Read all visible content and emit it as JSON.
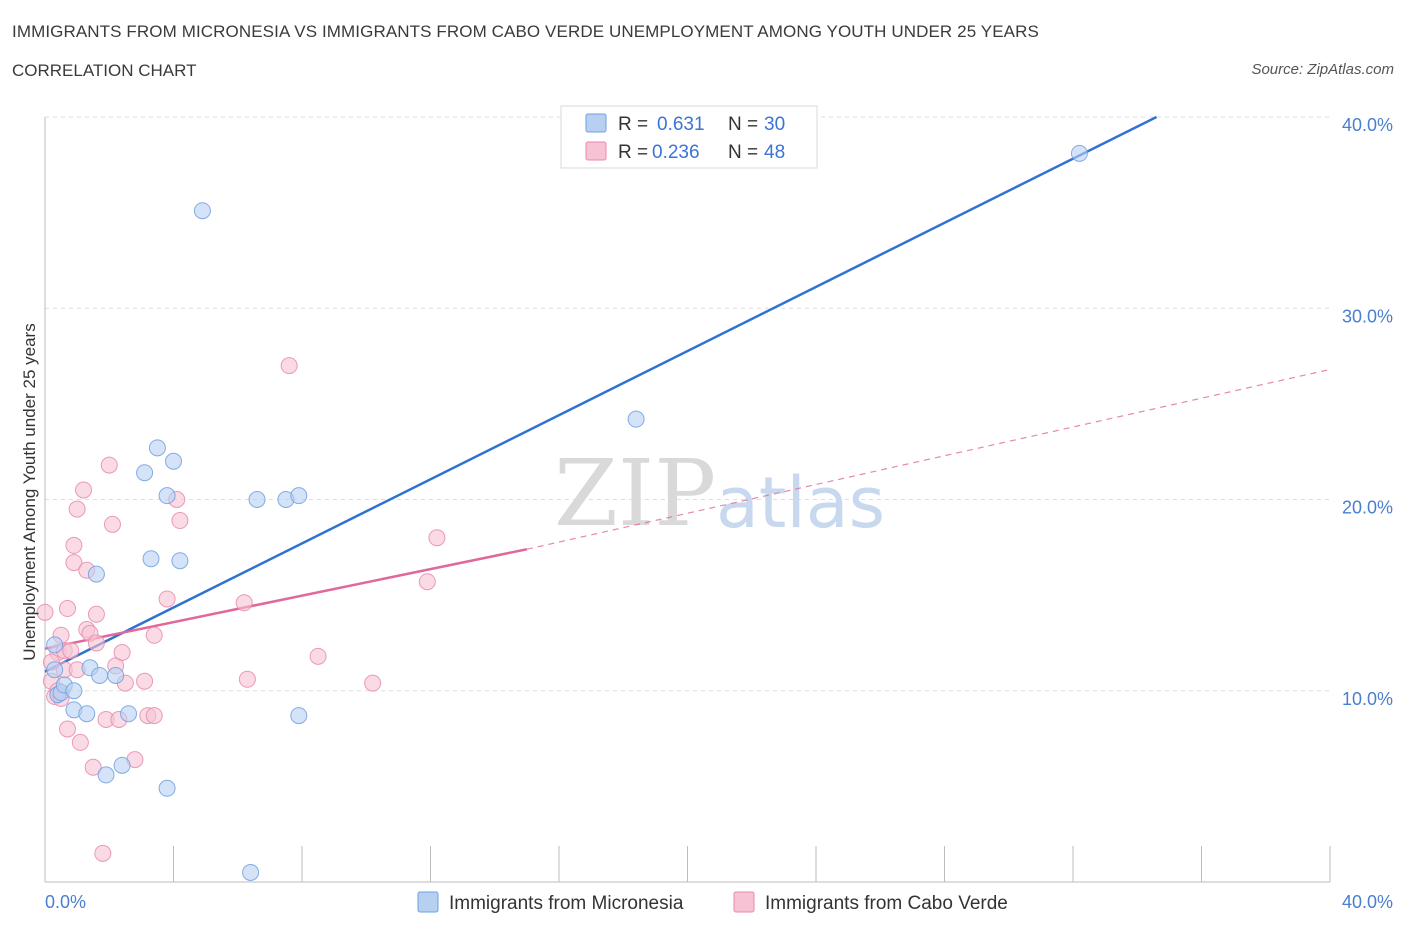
{
  "header": {
    "title": "IMMIGRANTS FROM MICRONESIA VS IMMIGRANTS FROM CABO VERDE UNEMPLOYMENT AMONG YOUTH UNDER 25 YEARS",
    "subtitle": "CORRELATION CHART",
    "source": "Source: ZipAtlas.com"
  },
  "watermark": {
    "zip": "ZIP",
    "atlas": "atlas"
  },
  "colors": {
    "micronesia": "#6ea0e0",
    "micronesia_fill": "#b7d0f2",
    "micronesia_line": "#2f72d0",
    "caboverde": "#e88aac",
    "caboverde_fill": "#f7c3d4",
    "caboverde_line": "#e0699a",
    "grid": "#dddddd"
  },
  "chart_data": {
    "type": "scatter",
    "title": "IMMIGRANTS FROM MICRONESIA VS IMMIGRANTS FROM CABO VERDE UNEMPLOYMENT AMONG YOUTH UNDER 25 YEARS",
    "xlabel": "",
    "ylabel": "Unemployment Among Youth under 25 years",
    "xlim": [
      0,
      40
    ],
    "ylim": [
      0,
      40
    ],
    "x_ticks": [
      "0.0%",
      "40.0%"
    ],
    "y_ticks": [
      {
        "value": 10,
        "label": "10.0%"
      },
      {
        "value": 20,
        "label": "20.0%"
      },
      {
        "value": 30,
        "label": "30.0%"
      },
      {
        "value": 40,
        "label": "40.0%"
      }
    ],
    "legend": {
      "position": "top-center",
      "entries": [
        {
          "r_label": "R =",
          "r": "0.631",
          "n_label": "N =",
          "n": "30"
        },
        {
          "r_label": "R =",
          "r": "0.236",
          "n_label": "N =",
          "n": "48"
        }
      ]
    },
    "series": [
      {
        "name": "Immigrants from Micronesia",
        "points": [
          [
            0.3,
            12.4
          ],
          [
            0.3,
            11.1
          ],
          [
            0.4,
            9.8
          ],
          [
            0.5,
            9.9
          ],
          [
            0.6,
            10.3
          ],
          [
            0.9,
            9.0
          ],
          [
            0.9,
            10.0
          ],
          [
            1.3,
            8.8
          ],
          [
            1.4,
            11.2
          ],
          [
            1.6,
            16.1
          ],
          [
            1.7,
            10.8
          ],
          [
            1.9,
            5.6
          ],
          [
            2.2,
            10.8
          ],
          [
            2.4,
            6.1
          ],
          [
            2.6,
            8.8
          ],
          [
            3.1,
            21.4
          ],
          [
            3.3,
            16.9
          ],
          [
            3.5,
            22.7
          ],
          [
            3.8,
            4.9
          ],
          [
            3.8,
            20.2
          ],
          [
            4.0,
            22.0
          ],
          [
            4.2,
            16.8
          ],
          [
            4.9,
            35.1
          ],
          [
            6.4,
            0.5
          ],
          [
            6.6,
            20.0
          ],
          [
            7.5,
            20.0
          ],
          [
            7.9,
            20.2
          ],
          [
            7.9,
            8.7
          ],
          [
            18.4,
            24.2
          ],
          [
            32.2,
            38.1
          ]
        ],
        "trend": {
          "x0": 0,
          "y0": 11.0,
          "x1": 34.6,
          "y1": 40.0,
          "style": "solid"
        }
      },
      {
        "name": "Immigrants from Cabo Verde",
        "points": [
          [
            0.0,
            14.1
          ],
          [
            0.2,
            10.5
          ],
          [
            0.3,
            9.7
          ],
          [
            0.4,
            12.0
          ],
          [
            0.5,
            12.9
          ],
          [
            0.5,
            9.6
          ],
          [
            0.6,
            11.1
          ],
          [
            0.6,
            12.1
          ],
          [
            0.7,
            8.0
          ],
          [
            0.8,
            12.1
          ],
          [
            0.9,
            16.7
          ],
          [
            0.9,
            17.6
          ],
          [
            1.0,
            19.5
          ],
          [
            1.1,
            7.3
          ],
          [
            1.2,
            20.5
          ],
          [
            1.3,
            16.3
          ],
          [
            1.3,
            13.2
          ],
          [
            1.4,
            13.0
          ],
          [
            1.5,
            6.0
          ],
          [
            1.6,
            12.5
          ],
          [
            1.6,
            14.0
          ],
          [
            1.8,
            1.5
          ],
          [
            1.9,
            8.5
          ],
          [
            2.0,
            21.8
          ],
          [
            2.1,
            18.7
          ],
          [
            2.2,
            11.3
          ],
          [
            2.3,
            8.5
          ],
          [
            2.4,
            12.0
          ],
          [
            2.5,
            10.4
          ],
          [
            2.8,
            6.4
          ],
          [
            3.1,
            10.5
          ],
          [
            3.2,
            8.7
          ],
          [
            3.4,
            12.9
          ],
          [
            3.4,
            8.7
          ],
          [
            3.8,
            14.8
          ],
          [
            4.1,
            20.0
          ],
          [
            4.2,
            18.9
          ],
          [
            6.2,
            14.6
          ],
          [
            6.3,
            10.6
          ],
          [
            7.6,
            27.0
          ],
          [
            8.5,
            11.8
          ],
          [
            10.2,
            10.4
          ],
          [
            11.9,
            15.7
          ],
          [
            12.2,
            18.0
          ],
          [
            0.7,
            14.3
          ],
          [
            0.2,
            11.5
          ],
          [
            0.4,
            10.0
          ],
          [
            1.0,
            11.1
          ]
        ],
        "trend": {
          "x0": 0,
          "y0": 12.2,
          "x1": 15.0,
          "y1": 17.4,
          "style": "solid"
        },
        "trend_extension": {
          "x0": 15.0,
          "y0": 17.4,
          "x1": 40,
          "y1": 26.8,
          "style": "dashed"
        }
      }
    ]
  }
}
